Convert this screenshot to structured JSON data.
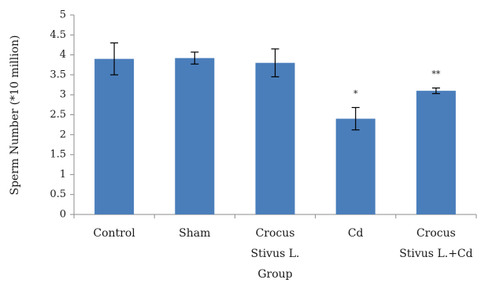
{
  "chart_data": {
    "type": "bar",
    "title": "",
    "xlabel": "",
    "ylabel": "Sperm Number (*10 million)",
    "ylim": [
      0,
      5
    ],
    "yticks": [
      "0",
      "0.5",
      "1",
      "1.5",
      "2",
      "2.5",
      "3",
      "3.5",
      "4",
      "4.5",
      "5"
    ],
    "grid": false,
    "legend": "none",
    "categories": [
      [
        "Control"
      ],
      [
        "Sham"
      ],
      [
        "Crocus",
        "Stivus L.",
        "Group"
      ],
      [
        "Cd"
      ],
      [
        "Crocus",
        "Stivus L.+Cd"
      ]
    ],
    "values": [
      3.9,
      3.92,
      3.8,
      2.4,
      3.1
    ],
    "error": [
      0.4,
      0.15,
      0.35,
      0.28,
      0.07
    ],
    "annotations": [
      "",
      "",
      "",
      "*",
      "**"
    ],
    "bar_color": "#4a7ebb",
    "axis_color": "#8c8c8c"
  }
}
